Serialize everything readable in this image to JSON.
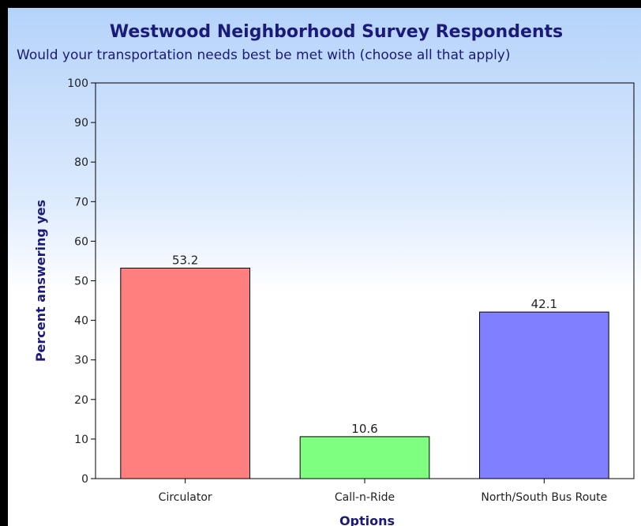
{
  "chart_data": {
    "type": "bar",
    "title": "Westwood Neighborhood Survey Respondents",
    "subtitle": "Would your transportation needs best be met with (choose all that apply)",
    "xlabel": "Options",
    "ylabel": "Percent answering yes",
    "categories": [
      "Circulator",
      "Call-n-Ride",
      "North/South Bus Route"
    ],
    "values": [
      53.2,
      10.6,
      42.1
    ],
    "value_labels": [
      "53.2",
      "10.6",
      "42.1"
    ],
    "colors": [
      "#ff7f7f",
      "#7fff7f",
      "#7f7fff"
    ],
    "ylim": [
      0,
      100
    ],
    "yticks": [
      0,
      10,
      20,
      30,
      40,
      50,
      60,
      70,
      80,
      90,
      100
    ],
    "grid": false,
    "legend": "none"
  },
  "colors": {
    "title": "#1b1a78",
    "background_top": "#b5d3fa",
    "background_bottom": "#ffffff",
    "frame": "#000000"
  }
}
